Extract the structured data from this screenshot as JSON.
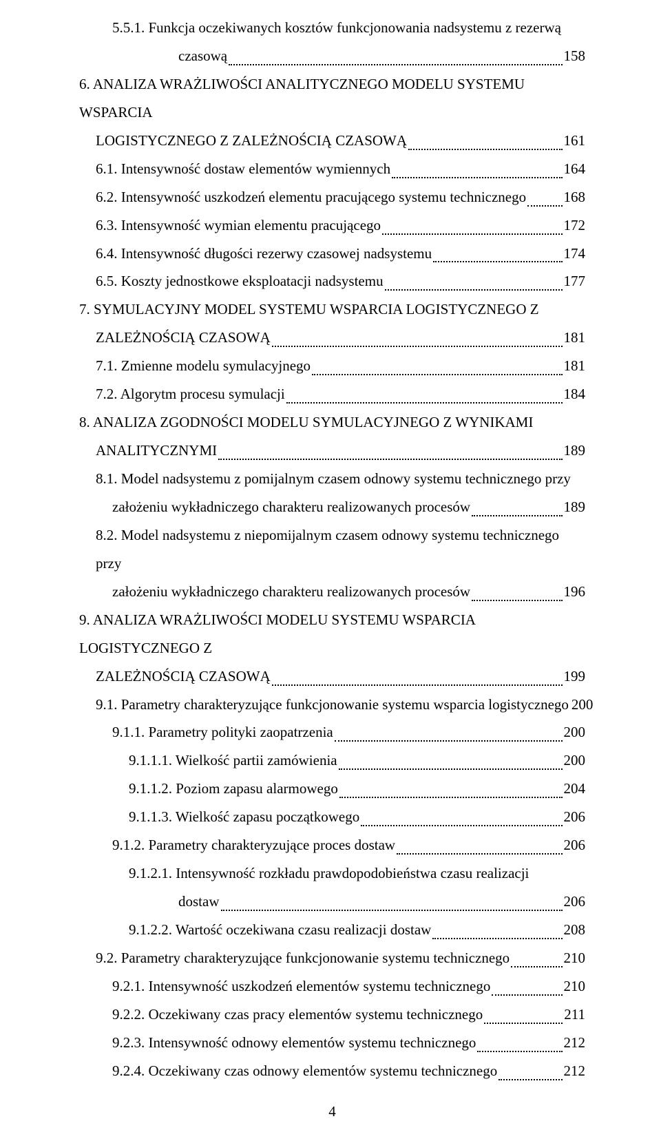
{
  "page_number": "4",
  "font": {
    "family": "Times New Roman",
    "body_size_pt": 16,
    "color": "#000000"
  },
  "background_color": "#ffffff",
  "toc": {
    "entries": [
      {
        "level": "lvl3",
        "wrap": true,
        "text": "5.5.1. Funkcja oczekiwanych kosztów funkcjonowania nadsystemu z rezerwą",
        "cont": "czasową",
        "cont_level": "lvl4b",
        "page": "158"
      },
      {
        "level": "lvl0",
        "wrap": true,
        "text": "6. ANALIZA WRAŻLIWOŚCI ANALITYCZNEGO MODELU SYSTEMU WSPARCIA",
        "cont": "LOGISTYCZNEGO Z ZALEŻNOŚCIĄ CZASOWĄ",
        "cont_level": "lvl1",
        "page": "161"
      },
      {
        "level": "lvl1",
        "wrap": false,
        "text": "6.1. Intensywność dostaw elementów wymiennych",
        "page": "164"
      },
      {
        "level": "lvl1",
        "wrap": false,
        "text": "6.2. Intensywność uszkodzeń elementu pracującego systemu technicznego",
        "page": "168"
      },
      {
        "level": "lvl1",
        "wrap": false,
        "text": "6.3. Intensywność wymian elementu pracującego",
        "page": "172"
      },
      {
        "level": "lvl1",
        "wrap": false,
        "text": "6.4. Intensywność długości rezerwy czasowej nadsystemu",
        "page": "174"
      },
      {
        "level": "lvl1",
        "wrap": false,
        "text": "6.5. Koszty jednostkowe eksploatacji nadsystemu",
        "page": "177"
      },
      {
        "level": "lvl0",
        "wrap": true,
        "text": "7. SYMULACYJNY MODEL SYSTEMU WSPARCIA LOGISTYCZNEGO Z",
        "cont": "ZALEŻNOŚCIĄ CZASOWĄ",
        "cont_level": "lvl1",
        "page": "181"
      },
      {
        "level": "lvl1",
        "wrap": false,
        "text": "7.1. Zmienne modelu symulacyjnego",
        "page": "181"
      },
      {
        "level": "lvl1",
        "wrap": false,
        "text": "7.2. Algorytm procesu symulacji",
        "page": "184"
      },
      {
        "level": "lvl0",
        "wrap": true,
        "text": "8. ANALIZA ZGODNOŚCI MODELU SYMULACYJNEGO Z WYNIKAMI",
        "cont": "ANALITYCZNYMI",
        "cont_level": "lvl1",
        "page": "189"
      },
      {
        "level": "lvl1",
        "wrap": true,
        "text": "8.1. Model nadsystemu z pomijalnym czasem odnowy systemu technicznego przy",
        "cont": "założeniu wykładniczego charakteru realizowanych procesów",
        "cont_level": "lvl2",
        "page": "189"
      },
      {
        "level": "lvl1",
        "wrap": true,
        "text": "8.2. Model nadsystemu z niepomijalnym czasem odnowy systemu technicznego przy",
        "cont": "założeniu wykładniczego charakteru realizowanych procesów",
        "cont_level": "lvl2",
        "page": "196"
      },
      {
        "level": "lvl0",
        "wrap": true,
        "text": "9. ANALIZA WRAŻLIWOŚCI MODELU SYSTEMU WSPARCIA LOGISTYCZNEGO Z",
        "cont": "ZALEŻNOŚCIĄ CZASOWĄ",
        "cont_level": "lvl1",
        "page": "199"
      },
      {
        "level": "lvl1",
        "wrap": false,
        "text": "9.1. Parametry charakteryzujące funkcjonowanie systemu wsparcia logistycznego",
        "page": "200"
      },
      {
        "level": "lvl1b",
        "wrap": false,
        "text": "9.1.1. Parametry polityki zaopatrzenia",
        "page": "200"
      },
      {
        "level": "lvl2b",
        "wrap": false,
        "text": "9.1.1.1. Wielkość partii zamówienia",
        "page": "200"
      },
      {
        "level": "lvl2b",
        "wrap": false,
        "text": "9.1.1.2. Poziom zapasu alarmowego",
        "page": "204"
      },
      {
        "level": "lvl2b",
        "wrap": false,
        "text": "9.1.1.3. Wielkość zapasu początkowego",
        "page": "206"
      },
      {
        "level": "lvl1b",
        "wrap": false,
        "text": "9.1.2. Parametry charakteryzujące proces dostaw",
        "page": "206"
      },
      {
        "level": "lvl2b",
        "wrap": true,
        "text": "9.1.2.1. Intensywność rozkładu prawdopodobieństwa czasu realizacji",
        "cont": "dostaw",
        "cont_level": "lvl4b",
        "page": "206"
      },
      {
        "level": "lvl2b",
        "wrap": false,
        "text": "9.1.2.2. Wartość oczekiwana czasu realizacji dostaw",
        "page": "208"
      },
      {
        "level": "lvl1",
        "wrap": false,
        "text": "9.2. Parametry charakteryzujące funkcjonowanie systemu technicznego",
        "page": "210"
      },
      {
        "level": "lvl1b",
        "wrap": false,
        "text": "9.2.1. Intensywność uszkodzeń elementów systemu technicznego",
        "page": "210"
      },
      {
        "level": "lvl1b",
        "wrap": false,
        "text": "9.2.2. Oczekiwany czas pracy elementów systemu technicznego",
        "page": "211"
      },
      {
        "level": "lvl1b",
        "wrap": false,
        "text": "9.2.3. Intensywność odnowy elementów systemu technicznego",
        "page": "212"
      },
      {
        "level": "lvl1b",
        "wrap": false,
        "text": "9.2.4. Oczekiwany czas odnowy elementów systemu technicznego",
        "page": "212"
      }
    ]
  }
}
